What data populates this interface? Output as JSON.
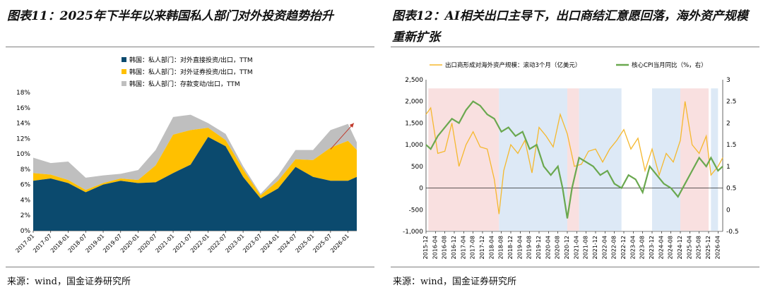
{
  "titles": {
    "left": "图表11：2025年下半年以来韩国私人部门对外投资趋势抬升",
    "right": "图表12：AI相关出口主导下，出口商结汇意愿回落，海外资产规模重新扩张"
  },
  "source": {
    "left": "来源：wind，国金证券研究所",
    "right": "来源：wind，国金证券研究所"
  },
  "colors": {
    "fdi": "#0b4a6e",
    "portfolio": "#ffc000",
    "deposit": "#bfbfbf",
    "arrow": "#c0392b",
    "line_assets": "#f5b82e",
    "line_cpi": "#6aa84f",
    "shade_pink": "#f9e0e0",
    "shade_blue": "#dde9f6"
  },
  "chart_data": [
    {
      "type": "area",
      "stacked": true,
      "legend_position": "top",
      "ylim": [
        0,
        18
      ],
      "yticks": [
        "0%",
        "2%",
        "4%",
        "6%",
        "8%",
        "10%",
        "12%",
        "14%",
        "16%",
        "18%"
      ],
      "xticks": [
        "2017-01",
        "2017-07",
        "2018-01",
        "2018-07",
        "2019-01",
        "2019-07",
        "2020-01",
        "2020-07",
        "2021-01",
        "2021-07",
        "2022-01",
        "2022-07",
        "2023-01",
        "2023-07",
        "2024-01",
        "2024-07",
        "2025-01",
        "2025-07",
        "2026-01"
      ],
      "x_start": "2017-01",
      "x_end": "2026-04",
      "annotation": "upward arrow 2025-07 to 2026-03",
      "series": [
        {
          "name": "韩国：私人部门：对外直接投资/出口，TTM",
          "x": [
            "2017-01",
            "2017-07",
            "2018-01",
            "2018-07",
            "2019-01",
            "2019-07",
            "2020-01",
            "2020-07",
            "2021-01",
            "2021-07",
            "2022-01",
            "2022-07",
            "2023-01",
            "2023-07",
            "2024-01",
            "2024-07",
            "2025-01",
            "2025-07",
            "2026-01",
            "2026-04"
          ],
          "values": [
            6.5,
            6.8,
            6.2,
            5.0,
            6.0,
            6.5,
            6.2,
            6.3,
            7.5,
            8.6,
            12.2,
            11.0,
            7.0,
            4.2,
            5.5,
            8.3,
            7.0,
            6.5,
            6.5,
            7.0
          ]
        },
        {
          "name": "韩国：私人部门：对外证券投资/出口，TTM",
          "x": [
            "2017-01",
            "2017-07",
            "2018-01",
            "2018-07",
            "2019-01",
            "2019-07",
            "2020-01",
            "2020-07",
            "2021-01",
            "2021-07",
            "2022-01",
            "2022-07",
            "2023-01",
            "2023-07",
            "2024-01",
            "2024-07",
            "2025-01",
            "2025-07",
            "2026-01",
            "2026-04"
          ],
          "values": [
            1.0,
            0.5,
            0.4,
            0.3,
            0.2,
            0.3,
            0.4,
            2.2,
            5.0,
            4.5,
            1.2,
            0.8,
            1.0,
            0.4,
            1.0,
            1.0,
            2.2,
            4.3,
            5.2,
            3.5
          ]
        },
        {
          "name": "韩国：私人部门：存款变动/出口，TTM",
          "x": [
            "2017-01",
            "2017-07",
            "2018-01",
            "2018-07",
            "2019-01",
            "2019-07",
            "2020-01",
            "2020-07",
            "2021-01",
            "2021-07",
            "2022-01",
            "2022-07",
            "2023-01",
            "2023-07",
            "2024-01",
            "2024-07",
            "2025-01",
            "2025-07",
            "2026-01",
            "2026-04"
          ],
          "values": [
            2.0,
            1.5,
            2.4,
            1.6,
            1.0,
            0.6,
            1.3,
            2.0,
            2.3,
            2.0,
            0.6,
            0.8,
            0.4,
            0.2,
            0.7,
            1.2,
            1.3,
            2.3,
            2.2,
            1.0
          ]
        }
      ]
    },
    {
      "type": "line",
      "legend_position": "top",
      "ylim_left": [
        -1000,
        2500
      ],
      "ylim_right": [
        -0.5,
        3
      ],
      "yticks_left": [
        "-1,000",
        "-500",
        "0",
        "500",
        "1,000",
        "1,500",
        "2,000",
        "2,500"
      ],
      "yticks_right": [
        "-0.5",
        "0",
        "0.5",
        "1",
        "1.5",
        "2",
        "2.5",
        "3"
      ],
      "xticks": [
        "2015-12",
        "2016-04",
        "2016-08",
        "2016-12",
        "2017-04",
        "2017-08",
        "2017-12",
        "2018-04",
        "2018-08",
        "2018-12",
        "2019-04",
        "2019-08",
        "2019-12",
        "2020-04",
        "2020-08",
        "2020-12",
        "2021-04",
        "2021-08",
        "2021-12",
        "2022-04",
        "2022-08",
        "2022-12",
        "2023-04",
        "2023-08",
        "2023-12",
        "2024-04",
        "2024-08",
        "2024-12",
        "2025-04",
        "2025-08",
        "2025-12",
        "2026-04"
      ],
      "x_start": "2015-12",
      "x_end": "2026-06",
      "shaded_periods": [
        {
          "from": "2016-01",
          "to": "2018-07",
          "color": "pink"
        },
        {
          "from": "2018-07",
          "to": "2020-12",
          "color": "blue"
        },
        {
          "from": "2020-12",
          "to": "2021-05",
          "color": "pink"
        },
        {
          "from": "2021-05",
          "to": "2022-11",
          "color": "blue"
        },
        {
          "from": "2023-12",
          "to": "2024-12",
          "color": "blue"
        },
        {
          "from": "2024-12",
          "to": "2025-12",
          "color": "pink"
        },
        {
          "from": "2026-01",
          "to": "2026-04",
          "color": "blue"
        }
      ],
      "series": [
        {
          "name": "出口商形成对海外资产规模：滚动3个月（亿美元）",
          "axis": "left",
          "x": [
            "2015-12",
            "2016-02",
            "2016-05",
            "2016-08",
            "2016-11",
            "2017-02",
            "2017-05",
            "2017-08",
            "2017-11",
            "2018-02",
            "2018-05",
            "2018-07",
            "2018-09",
            "2018-12",
            "2019-03",
            "2019-06",
            "2019-09",
            "2019-12",
            "2020-03",
            "2020-06",
            "2020-09",
            "2020-12",
            "2021-03",
            "2021-06",
            "2021-09",
            "2021-12",
            "2022-03",
            "2022-06",
            "2022-09",
            "2022-12",
            "2023-03",
            "2023-06",
            "2023-09",
            "2023-12",
            "2024-03",
            "2024-06",
            "2024-09",
            "2024-12",
            "2025-02",
            "2025-05",
            "2025-08",
            "2025-11",
            "2026-01",
            "2026-04",
            "2026-06"
          ],
          "values": [
            1700,
            1850,
            800,
            850,
            1500,
            500,
            1000,
            1300,
            950,
            900,
            200,
            -600,
            400,
            1000,
            800,
            1100,
            350,
            1400,
            1200,
            950,
            1700,
            1250,
            500,
            550,
            850,
            900,
            600,
            900,
            1100,
            1350,
            900,
            1150,
            400,
            900,
            300,
            800,
            600,
            1100,
            2000,
            1000,
            800,
            1200,
            300,
            500,
            700
          ]
        },
        {
          "name": "核心CPI当月同比（%，右）",
          "axis": "right",
          "x": [
            "2015-12",
            "2016-02",
            "2016-05",
            "2016-08",
            "2016-11",
            "2017-02",
            "2017-05",
            "2017-08",
            "2017-11",
            "2018-02",
            "2018-05",
            "2018-08",
            "2018-11",
            "2019-02",
            "2019-05",
            "2019-08",
            "2019-11",
            "2020-02",
            "2020-05",
            "2020-08",
            "2020-10",
            "2020-12",
            "2021-02",
            "2021-05",
            "2021-08",
            "2021-11",
            "2022-02",
            "2022-05",
            "2022-08",
            "2022-11",
            "2023-02",
            "2023-05",
            "2023-08",
            "2023-11",
            "2024-02",
            "2024-05",
            "2024-08",
            "2024-11",
            "2025-02",
            "2025-05",
            "2025-08",
            "2025-11",
            "2026-01",
            "2026-04",
            "2026-06"
          ],
          "values": [
            1.5,
            1.4,
            1.7,
            1.9,
            2.1,
            2.0,
            2.3,
            2.5,
            2.4,
            2.2,
            2.1,
            1.8,
            1.9,
            1.7,
            1.8,
            1.4,
            1.5,
            1.0,
            0.8,
            1.0,
            0.5,
            -0.2,
            0.5,
            1.2,
            1.1,
            1.0,
            0.8,
            0.9,
            0.6,
            0.5,
            0.8,
            0.7,
            0.4,
            1.0,
            0.8,
            0.6,
            0.5,
            0.3,
            0.6,
            0.9,
            1.2,
            1.0,
            1.2,
            0.9,
            1.0
          ]
        }
      ]
    }
  ]
}
